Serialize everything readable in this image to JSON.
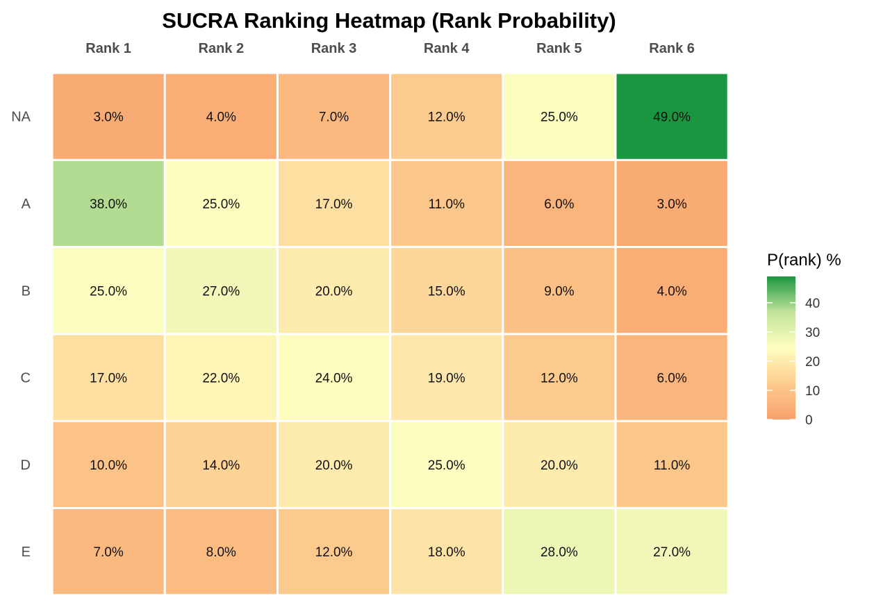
{
  "chart_data": {
    "type": "heatmap",
    "title": "SUCRA Ranking Heatmap (Rank Probability)",
    "columns": [
      "Rank 1",
      "Rank 2",
      "Rank 3",
      "Rank 4",
      "Rank 5",
      "Rank 6"
    ],
    "rows": [
      "NA",
      "A",
      "B",
      "C",
      "D",
      "E"
    ],
    "values": [
      [
        3,
        4,
        7,
        12,
        25,
        49
      ],
      [
        38,
        25,
        17,
        11,
        6,
        3
      ],
      [
        25,
        27,
        20,
        15,
        9,
        4
      ],
      [
        17,
        22,
        24,
        19,
        12,
        6
      ],
      [
        10,
        14,
        20,
        25,
        20,
        11
      ],
      [
        7,
        8,
        12,
        18,
        28,
        27
      ]
    ],
    "value_suffix": "%",
    "legend": {
      "title": "P(rank) %",
      "ticks": [
        0,
        10,
        20,
        30,
        40
      ],
      "range": [
        0,
        49
      ],
      "placement": "right",
      "colors": {
        "low": "#F8A06B",
        "lowmid": "#FDCB8E",
        "mid": "#FEFEC0",
        "highmid": "#C2E39A",
        "high": "#1A9641"
      }
    },
    "grid": false
  }
}
